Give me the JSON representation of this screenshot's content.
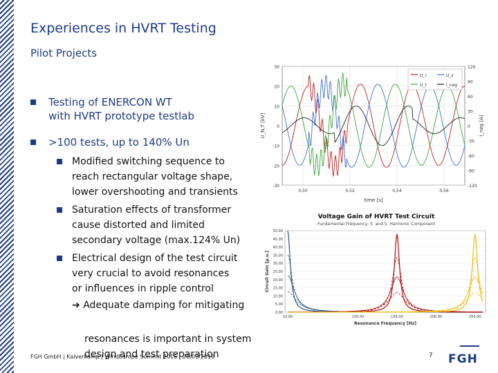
{
  "title": "Experiences in HVRT Testing",
  "subtitle": "Pilot Projects",
  "bullets": [
    {
      "text": "Testing of ENERCON WT\nwith HVRT prototype testlab"
    },
    {
      "text": ">100 tests, up to 140% Un"
    }
  ],
  "sub_bullets": [
    {
      "text": "Modified switching sequence to\nreach rectangular voltage shape,\nlower overshooting and transients"
    },
    {
      "text": "Saturation effects of transformer\ncause distorted and limited\nsecondary voltage (max.124% Un)"
    },
    {
      "text": "Electrical design of the test circuit\nvery crucial to avoid resonances\nor influences in ripple control"
    }
  ],
  "arrow_text": "Adequate damping for mitigating",
  "continuation_text": "resonances is important in system\ndesign and test preparation",
  "footer": "FGH GmbH | Kalverkamp | WindEurope Summit 2016 | 28/09/2016",
  "page_number": "7",
  "logo_text": "FGH",
  "colors": {
    "brand_blue": "#1c3a86",
    "red": "#c41e1e",
    "yellow": "#f0c020",
    "green": "#3aa53a",
    "blue": "#3b6fd6"
  },
  "chart_data": [
    {
      "type": "line",
      "title": "",
      "xlabel": "time [s]",
      "ylabel": "U_N,T [kV]",
      "y2label": "I_neg [A]",
      "xticks": [
        "0,50",
        "0,52",
        "0,54",
        "0,56"
      ],
      "yticks": [
        "30",
        "20",
        "10",
        "0",
        "-10",
        "-20",
        "-30"
      ],
      "y2ticks": [
        "120",
        "90",
        "60",
        "30",
        "0",
        "-30",
        "-60",
        "-90",
        "-120"
      ],
      "xlim": [
        0.495,
        0.565
      ],
      "ylim": [
        -30,
        30
      ],
      "legend": [
        "U_r",
        "U_s",
        "U_t",
        "I_neg"
      ],
      "legend_position": "top-right",
      "series": [
        {
          "name": "U_r",
          "color": "#c41e1e",
          "amplitude": 20,
          "phase_deg": 0
        },
        {
          "name": "U_s",
          "color": "#3b6fd6",
          "amplitude": 20,
          "phase_deg": -120
        },
        {
          "name": "U_t",
          "color": "#3aa53a",
          "amplitude": 20,
          "phase_deg": 120
        },
        {
          "name": "I_neg",
          "color": "#222222",
          "amplitude": 4,
          "phase_deg": 30
        }
      ]
    },
    {
      "type": "line",
      "title": "Voltage Gain of HVRT Test Circuit",
      "subtitle": "Fundamental Frequency, 3. and 5. Harmonic Component",
      "xlabel": "Resonance Frequency [Hz]",
      "ylabel": "Circuit Gain [p.u.]",
      "xticks": [
        "10.00",
        "100.00",
        "150.00",
        "200.00",
        "250.00"
      ],
      "yticks": [
        "50.00",
        "45.00",
        "40.00",
        "35.00",
        "30.00",
        "25.00",
        "20.00",
        "15.00",
        "10.00",
        "5.00",
        "0.00"
      ],
      "ylim": [
        0,
        50
      ],
      "series": [
        {
          "name": "",
          "color": "#3b5e8a",
          "peak_x": 10,
          "peak_y": 50
        },
        {
          "name": "",
          "color": "#b01818",
          "peak_x": 150,
          "peak_y": 48
        },
        {
          "name": "",
          "color": "#f0c020",
          "peak_x": 250,
          "peak_y": 48
        }
      ]
    }
  ]
}
